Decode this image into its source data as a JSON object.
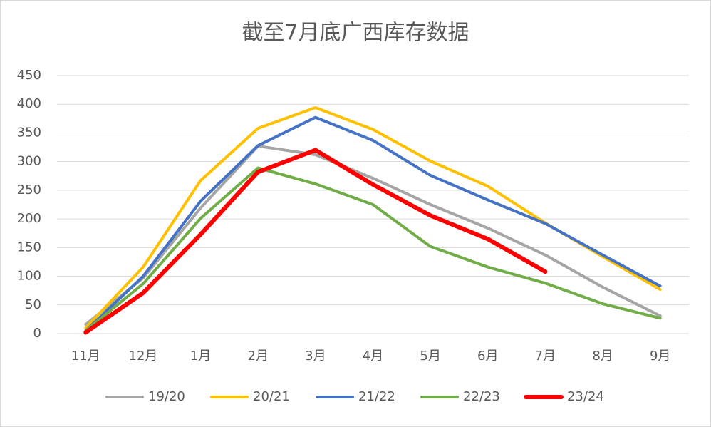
{
  "chart_data": {
    "type": "line",
    "title": "截至7月底广西库存数据",
    "categories": [
      "11月",
      "12月",
      "1月",
      "2月",
      "3月",
      "4月",
      "5月",
      "6月",
      "7月",
      "8月",
      "9月"
    ],
    "series": [
      {
        "name": "19/20",
        "color": "#a5a5a5",
        "values": [
          16,
          97,
          219,
          327,
          312,
          271,
          225,
          184,
          137,
          81,
          31
        ]
      },
      {
        "name": "20/21",
        "color": "#ffc000",
        "values": [
          10,
          116,
          267,
          358,
          394,
          356,
          301,
          257,
          193,
          134,
          77
        ]
      },
      {
        "name": "21/22",
        "color": "#4472c4",
        "values": [
          5,
          100,
          231,
          328,
          377,
          337,
          276,
          233,
          192,
          137,
          83
        ]
      },
      {
        "name": "22/23",
        "color": "#70ad47",
        "values": [
          5,
          87,
          201,
          289,
          261,
          225,
          152,
          116,
          88,
          52,
          27
        ]
      },
      {
        "name": "23/24",
        "color": "#ff0000",
        "values": [
          2,
          71,
          173,
          282,
          320,
          260,
          206,
          165,
          108,
          null,
          null
        ]
      }
    ],
    "ylim": [
      0,
      450
    ],
    "yticks": [
      0,
      50,
      100,
      150,
      200,
      250,
      300,
      350,
      400,
      450
    ],
    "grid": true,
    "legend": "bottom"
  }
}
